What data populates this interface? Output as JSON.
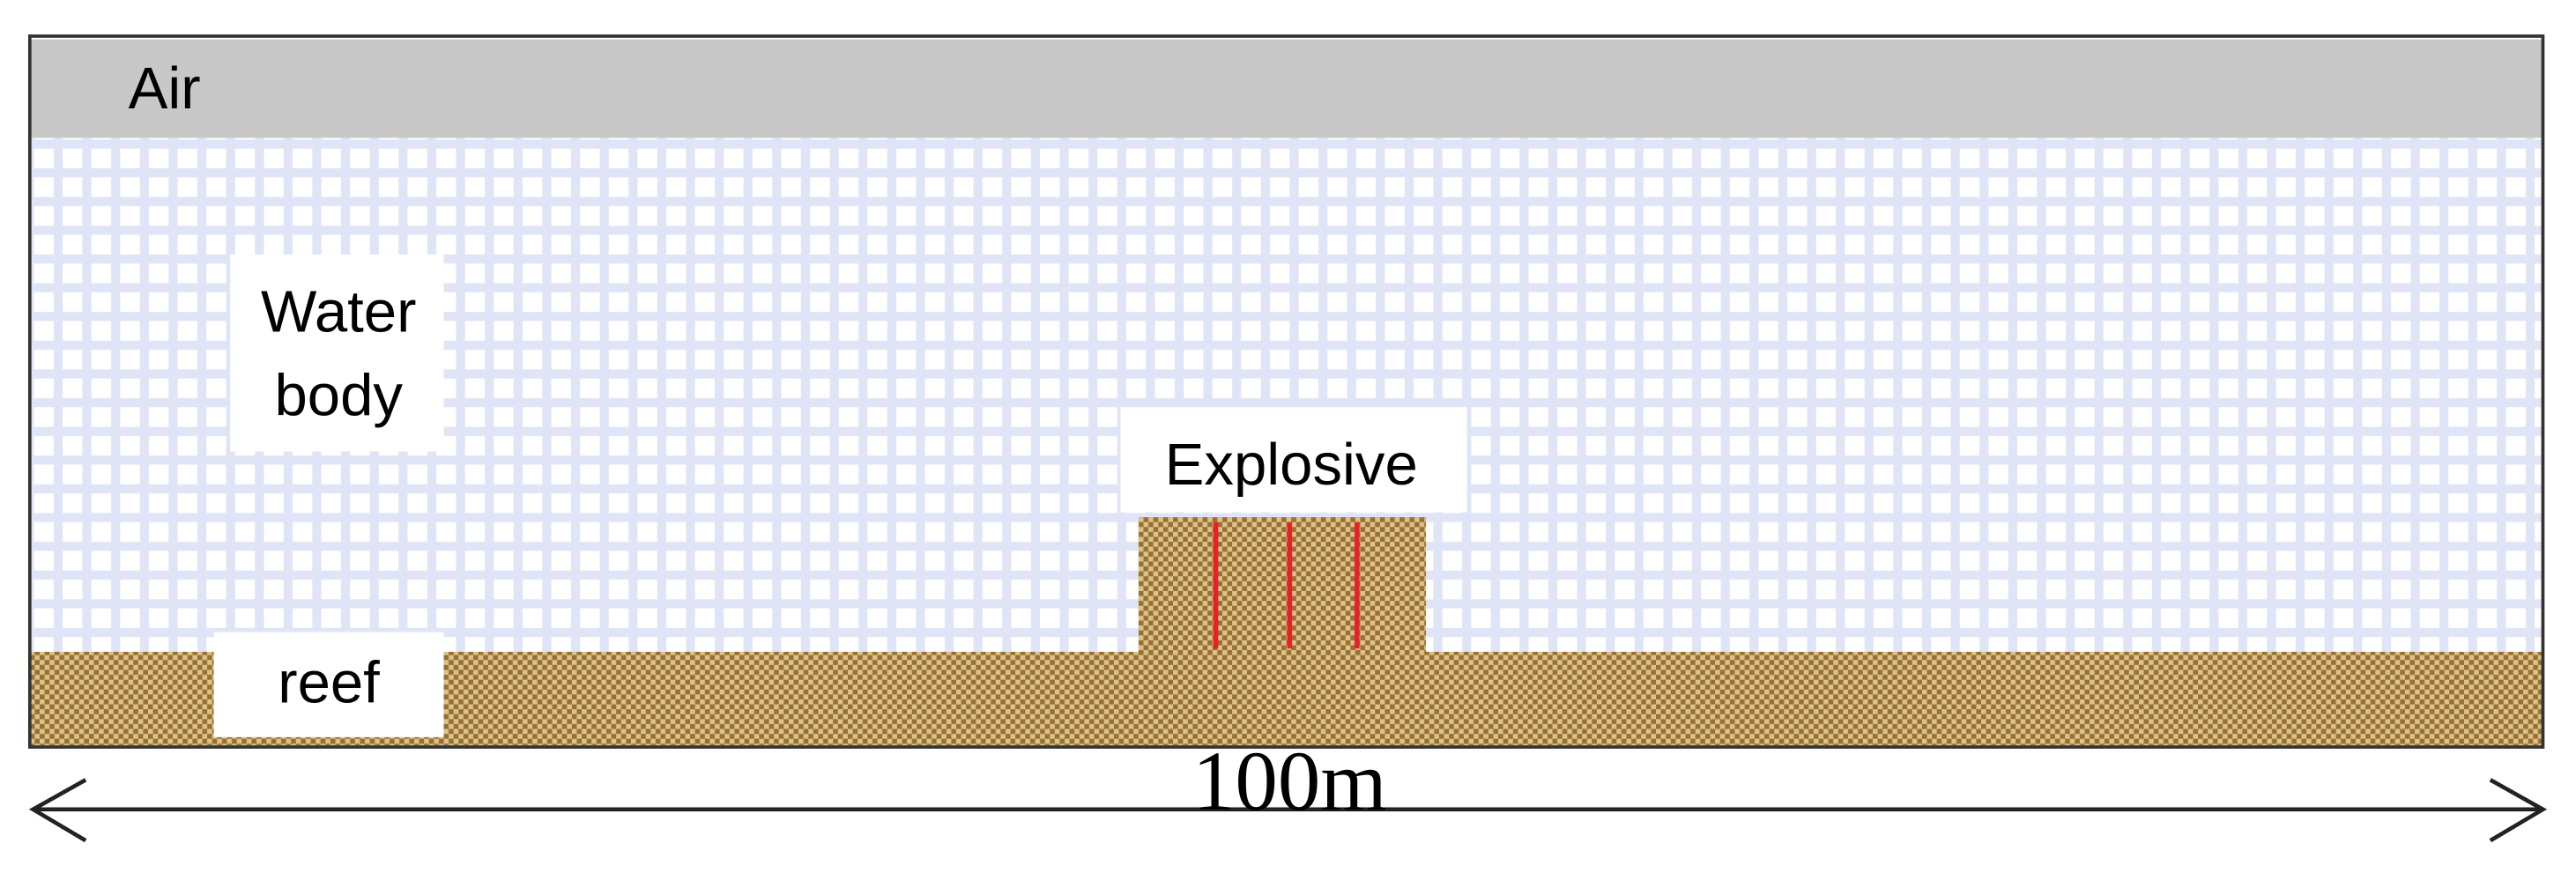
{
  "labels": {
    "air": "Air",
    "water_body": [
      "Water",
      "body"
    ],
    "explosive": "Explosive",
    "reef": "reef",
    "dimension": "100m"
  }
}
